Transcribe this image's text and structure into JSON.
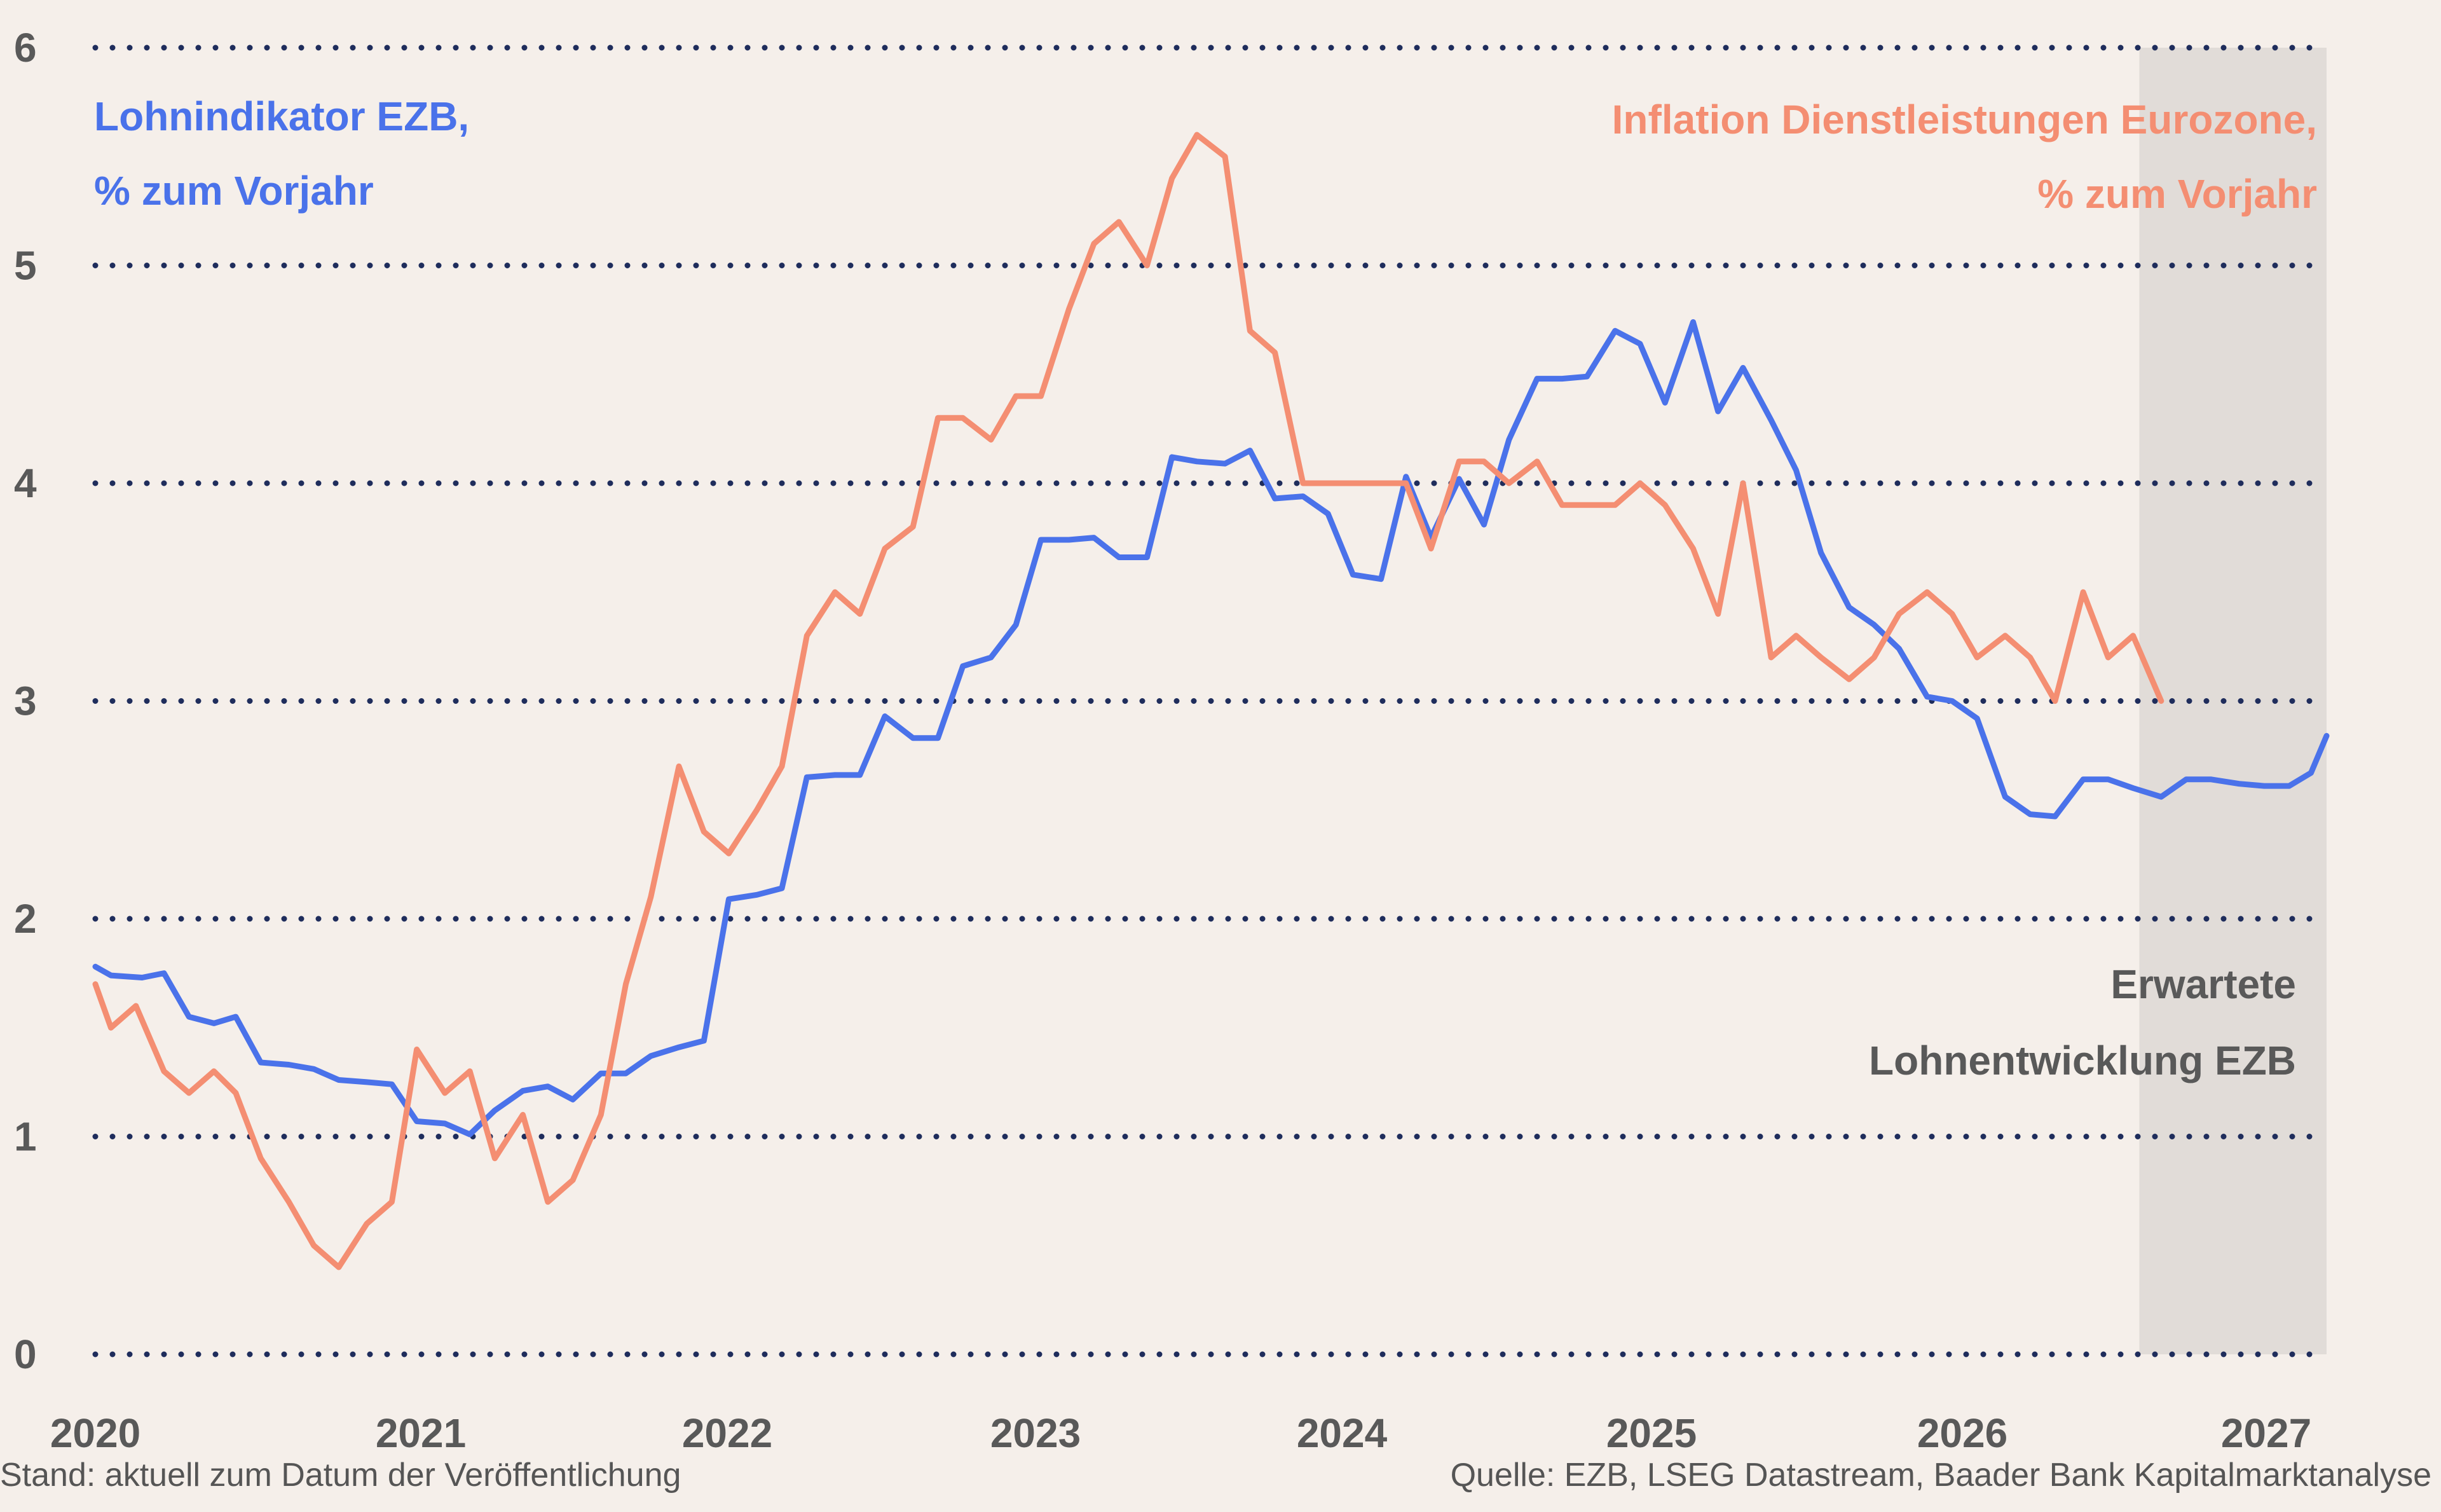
{
  "chart_data": {
    "type": "line",
    "ylim": [
      0,
      6
    ],
    "y_ticks": [
      "0",
      "1",
      "2",
      "3",
      "4",
      "5",
      "6"
    ],
    "x_range": [
      2020.0,
      2027.15
    ],
    "x_ticks": [
      "2020",
      "2021",
      "2022",
      "2023",
      "2024",
      "2025",
      "2026",
      "2027"
    ],
    "grid": "horizontal dotted",
    "forecast_band": {
      "from": 2026.55,
      "to": 2027.15,
      "label_line1": "Erwartete",
      "label_line2": "Lohnentwicklung EZB"
    },
    "series": [
      {
        "key": "wages",
        "label_line1": "Lohnindikator EZB,",
        "label_line2": "% zum Vorjahr",
        "color": "#4a72ea",
        "points": [
          [
            2020.0,
            1.78
          ],
          [
            2020.05,
            1.74
          ],
          [
            2020.15,
            1.73
          ],
          [
            2020.22,
            1.75
          ],
          [
            2020.3,
            1.55
          ],
          [
            2020.38,
            1.52
          ],
          [
            2020.45,
            1.55
          ],
          [
            2020.53,
            1.34
          ],
          [
            2020.62,
            1.33
          ],
          [
            2020.7,
            1.31
          ],
          [
            2020.78,
            1.26
          ],
          [
            2020.87,
            1.25
          ],
          [
            2020.95,
            1.24
          ],
          [
            2021.03,
            1.07
          ],
          [
            2021.12,
            1.06
          ],
          [
            2021.2,
            1.01
          ],
          [
            2021.28,
            1.12
          ],
          [
            2021.37,
            1.21
          ],
          [
            2021.45,
            1.23
          ],
          [
            2021.53,
            1.17
          ],
          [
            2021.62,
            1.29
          ],
          [
            2021.7,
            1.29
          ],
          [
            2021.78,
            1.37
          ],
          [
            2021.87,
            1.41
          ],
          [
            2021.95,
            1.44
          ],
          [
            2022.03,
            2.09
          ],
          [
            2022.12,
            2.11
          ],
          [
            2022.2,
            2.14
          ],
          [
            2022.28,
            2.65
          ],
          [
            2022.37,
            2.66
          ],
          [
            2022.45,
            2.66
          ],
          [
            2022.53,
            2.93
          ],
          [
            2022.62,
            2.83
          ],
          [
            2022.7,
            2.83
          ],
          [
            2022.78,
            3.16
          ],
          [
            2022.87,
            3.2
          ],
          [
            2022.95,
            3.35
          ],
          [
            2023.03,
            3.74
          ],
          [
            2023.12,
            3.74
          ],
          [
            2023.2,
            3.75
          ],
          [
            2023.28,
            3.66
          ],
          [
            2023.37,
            3.66
          ],
          [
            2023.45,
            4.12
          ],
          [
            2023.53,
            4.1
          ],
          [
            2023.62,
            4.09
          ],
          [
            2023.7,
            4.15
          ],
          [
            2023.78,
            3.93
          ],
          [
            2023.87,
            3.94
          ],
          [
            2023.95,
            3.86
          ],
          [
            2024.03,
            3.58
          ],
          [
            2024.12,
            3.56
          ],
          [
            2024.2,
            4.03
          ],
          [
            2024.28,
            3.75
          ],
          [
            2024.37,
            4.02
          ],
          [
            2024.45,
            3.81
          ],
          [
            2024.53,
            4.2
          ],
          [
            2024.62,
            4.48
          ],
          [
            2024.7,
            4.48
          ],
          [
            2024.78,
            4.49
          ],
          [
            2024.87,
            4.7
          ],
          [
            2024.95,
            4.64
          ],
          [
            2025.03,
            4.37
          ],
          [
            2025.12,
            4.74
          ],
          [
            2025.2,
            4.33
          ],
          [
            2025.28,
            4.53
          ],
          [
            2025.37,
            4.29
          ],
          [
            2025.45,
            4.06
          ],
          [
            2025.53,
            3.68
          ],
          [
            2025.62,
            3.43
          ],
          [
            2025.7,
            3.35
          ],
          [
            2025.78,
            3.24
          ],
          [
            2025.87,
            3.02
          ],
          [
            2025.95,
            3.0
          ],
          [
            2026.03,
            2.92
          ],
          [
            2026.12,
            2.56
          ],
          [
            2026.2,
            2.48
          ],
          [
            2026.28,
            2.47
          ],
          [
            2026.37,
            2.64
          ],
          [
            2026.45,
            2.64
          ],
          [
            2026.53,
            2.6
          ],
          [
            2026.62,
            2.56
          ],
          [
            2026.7,
            2.64
          ],
          [
            2026.78,
            2.64
          ],
          [
            2026.87,
            2.62
          ],
          [
            2026.95,
            2.61
          ],
          [
            2027.03,
            2.61
          ],
          [
            2027.1,
            2.67
          ],
          [
            2027.15,
            2.84
          ]
        ]
      },
      {
        "key": "services",
        "label_line1": "Inflation Dienstleistungen Eurozone,",
        "label_line2": "% zum Vorjahr",
        "color": "#f48e72",
        "points": [
          [
            2020.0,
            1.7
          ],
          [
            2020.05,
            1.5
          ],
          [
            2020.13,
            1.6
          ],
          [
            2020.22,
            1.3
          ],
          [
            2020.3,
            1.2
          ],
          [
            2020.38,
            1.3
          ],
          [
            2020.45,
            1.2
          ],
          [
            2020.53,
            0.9
          ],
          [
            2020.62,
            0.7
          ],
          [
            2020.7,
            0.5
          ],
          [
            2020.78,
            0.4
          ],
          [
            2020.87,
            0.6
          ],
          [
            2020.95,
            0.7
          ],
          [
            2021.03,
            1.4
          ],
          [
            2021.12,
            1.2
          ],
          [
            2021.2,
            1.3
          ],
          [
            2021.28,
            0.9
          ],
          [
            2021.37,
            1.1
          ],
          [
            2021.45,
            0.7
          ],
          [
            2021.53,
            0.8
          ],
          [
            2021.62,
            1.1
          ],
          [
            2021.7,
            1.7
          ],
          [
            2021.78,
            2.1
          ],
          [
            2021.87,
            2.7
          ],
          [
            2021.95,
            2.4
          ],
          [
            2022.03,
            2.3
          ],
          [
            2022.12,
            2.5
          ],
          [
            2022.2,
            2.7
          ],
          [
            2022.28,
            3.3
          ],
          [
            2022.37,
            3.5
          ],
          [
            2022.45,
            3.4
          ],
          [
            2022.53,
            3.7
          ],
          [
            2022.62,
            3.8
          ],
          [
            2022.7,
            4.3
          ],
          [
            2022.78,
            4.3
          ],
          [
            2022.87,
            4.2
          ],
          [
            2022.95,
            4.4
          ],
          [
            2023.03,
            4.4
          ],
          [
            2023.12,
            4.8
          ],
          [
            2023.2,
            5.1
          ],
          [
            2023.28,
            5.2
          ],
          [
            2023.37,
            5.0
          ],
          [
            2023.45,
            5.4
          ],
          [
            2023.53,
            5.6
          ],
          [
            2023.62,
            5.5
          ],
          [
            2023.7,
            4.7
          ],
          [
            2023.78,
            4.6
          ],
          [
            2023.87,
            4.0
          ],
          [
            2023.95,
            4.0
          ],
          [
            2024.03,
            4.0
          ],
          [
            2024.12,
            4.0
          ],
          [
            2024.2,
            4.0
          ],
          [
            2024.28,
            3.7
          ],
          [
            2024.37,
            4.1
          ],
          [
            2024.45,
            4.1
          ],
          [
            2024.53,
            4.0
          ],
          [
            2024.62,
            4.1
          ],
          [
            2024.7,
            3.9
          ],
          [
            2024.78,
            3.9
          ],
          [
            2024.87,
            3.9
          ],
          [
            2024.95,
            4.0
          ],
          [
            2025.03,
            3.9
          ],
          [
            2025.12,
            3.7
          ],
          [
            2025.2,
            3.4
          ],
          [
            2025.28,
            4.0
          ],
          [
            2025.37,
            3.2
          ],
          [
            2025.45,
            3.3
          ],
          [
            2025.53,
            3.2
          ],
          [
            2025.62,
            3.1
          ],
          [
            2025.7,
            3.2
          ],
          [
            2025.78,
            3.4
          ],
          [
            2025.87,
            3.5
          ],
          [
            2025.95,
            3.4
          ],
          [
            2026.03,
            3.2
          ],
          [
            2026.12,
            3.3
          ],
          [
            2026.2,
            3.2
          ],
          [
            2026.28,
            3.0
          ],
          [
            2026.37,
            3.5
          ],
          [
            2026.45,
            3.2
          ],
          [
            2026.53,
            3.3
          ],
          [
            2026.62,
            3.0
          ]
        ]
      }
    ]
  },
  "footer": {
    "left": "Stand: aktuell zum Datum der Veröffentlichung",
    "right": "Quelle: EZB, LSEG Datastream, Baader Bank Kapitalmarktanalyse"
  }
}
